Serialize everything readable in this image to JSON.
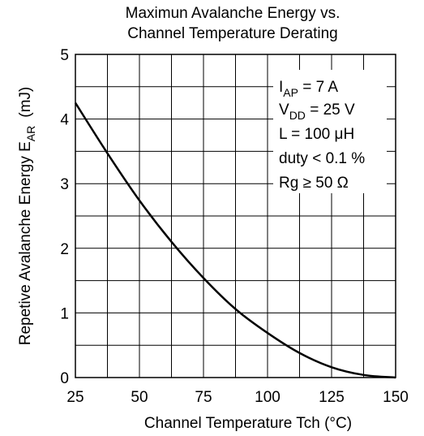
{
  "chart_data": {
    "type": "line",
    "title_line1": "Maximun Avalanche Energy vs.",
    "title_line2": "Channel Temperature Derating",
    "xlabel": "Channel Temperature   Tch  (°C)",
    "ylabel_main": "Repetive Avalanche Energy  E",
    "ylabel_sub": "AR",
    "ylabel_unit": "(mJ)",
    "xlim": [
      25,
      150
    ],
    "ylim": [
      0,
      5
    ],
    "x_ticks": [
      "25",
      "50",
      "75",
      "100",
      "125",
      "150"
    ],
    "y_ticks": [
      "0",
      "1",
      "2",
      "3",
      "4",
      "5"
    ],
    "grid": true,
    "series": [
      {
        "x": [
          25,
          37.5,
          50,
          62.5,
          75,
          87.5,
          100,
          112.5,
          125,
          137.5,
          150
        ],
        "y": [
          4.25,
          3.47,
          2.74,
          2.1,
          1.54,
          1.06,
          0.69,
          0.38,
          0.16,
          0.04,
          0
        ]
      }
    ],
    "annotations": {
      "iap_main": "I",
      "iap_sub": "AP",
      "iap_rest": " = 7 A",
      "vdd_main": "V",
      "vdd_sub": "DD",
      "vdd_rest": " = 25 V",
      "l_text": "L = 100 μH",
      "duty_text": "duty < 0.1 %",
      "rg_text": "Rg ≥ 50 Ω"
    }
  }
}
